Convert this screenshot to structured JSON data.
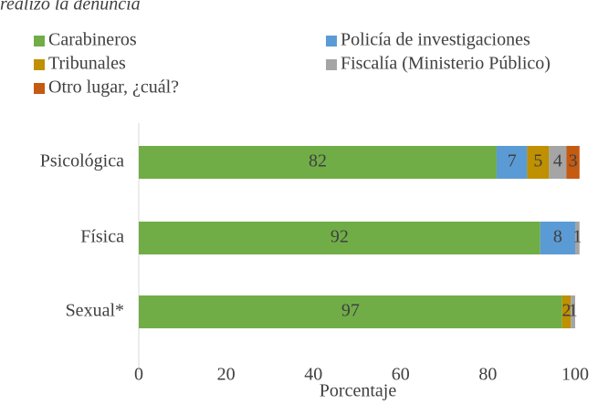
{
  "chart_data": {
    "type": "stacked-barh",
    "title": "realizó la denuncia",
    "categories": [
      "Psicológica",
      "Física",
      "Sexual*"
    ],
    "series": [
      {
        "name": "Carabineros",
        "color": "#70ad47",
        "values": [
          82,
          92,
          97
        ]
      },
      {
        "name": "Policía de investigaciones",
        "color": "#5b9bd5",
        "values": [
          7,
          8,
          null
        ]
      },
      {
        "name": "Tribunales",
        "color": "#bf9000",
        "values": [
          5,
          null,
          2
        ]
      },
      {
        "name": "Fiscalía (Ministerio Público)",
        "color": "#a5a5a5",
        "values": [
          4,
          1,
          1
        ]
      },
      {
        "name": "Otro lugar, ¿cuál?",
        "color": "#c55a11",
        "values": [
          3,
          null,
          null
        ]
      }
    ],
    "xlabel": "Porcentaje",
    "xlim": [
      0,
      100
    ],
    "xticks": [
      0,
      20,
      40,
      60,
      80,
      100
    ]
  }
}
